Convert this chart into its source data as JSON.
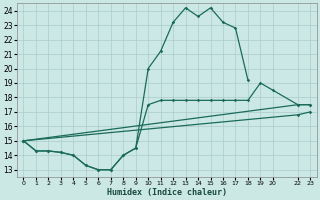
{
  "xlabel": "Humidex (Indice chaleur)",
  "bg_color": "#cce8e4",
  "grid_color": "#aacccc",
  "line_color": "#1a6b5a",
  "xlim": [
    -0.5,
    23.5
  ],
  "ylim": [
    12.5,
    24.5
  ],
  "xticks": [
    0,
    1,
    2,
    3,
    4,
    5,
    6,
    7,
    8,
    9,
    10,
    11,
    12,
    13,
    14,
    15,
    16,
    17,
    18,
    19,
    20,
    22,
    23
  ],
  "yticks": [
    13,
    14,
    15,
    16,
    17,
    18,
    19,
    20,
    21,
    22,
    23,
    24
  ],
  "line1_x": [
    0,
    1,
    2,
    3,
    4,
    5,
    6,
    7,
    8,
    9,
    10,
    11,
    12,
    13,
    14,
    15,
    16,
    17,
    18
  ],
  "line1_y": [
    15.0,
    14.3,
    14.3,
    14.2,
    14.0,
    13.3,
    13.0,
    13.0,
    14.0,
    14.5,
    20.0,
    21.2,
    23.2,
    24.2,
    23.6,
    24.2,
    23.2,
    22.8,
    19.2
  ],
  "line2_x": [
    0,
    1,
    2,
    3,
    4,
    5,
    6,
    7,
    8,
    9,
    10,
    11,
    12,
    13,
    14,
    15,
    16,
    17,
    18,
    19,
    20,
    22,
    23
  ],
  "line2_y": [
    15.0,
    14.3,
    14.3,
    14.2,
    14.0,
    13.3,
    13.0,
    13.0,
    14.0,
    14.5,
    17.5,
    17.8,
    17.8,
    17.8,
    17.8,
    17.8,
    17.8,
    17.8,
    17.8,
    19.0,
    18.5,
    17.5,
    17.5
  ],
  "line3_x": [
    0,
    22,
    23
  ],
  "line3_y": [
    15.0,
    17.5,
    17.5
  ],
  "line4_x": [
    0,
    22,
    23
  ],
  "line4_y": [
    15.0,
    16.8,
    17.0
  ]
}
